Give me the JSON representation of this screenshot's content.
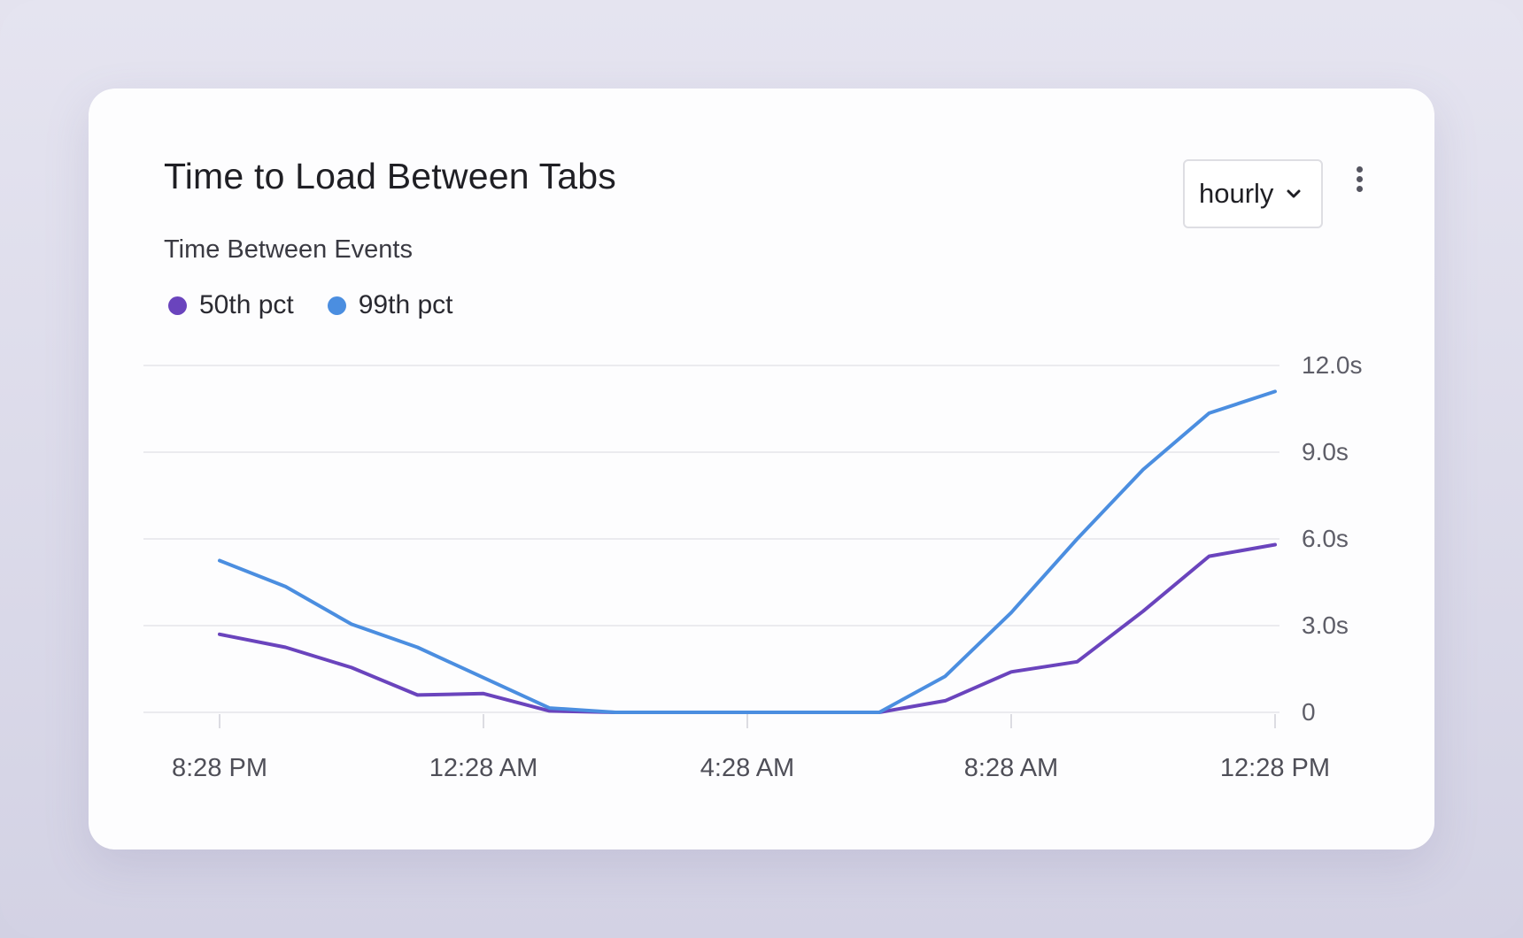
{
  "card": {
    "title": "Time to Load Between Tabs",
    "subtitle": "Time Between Events",
    "interval_select": {
      "value": "hourly"
    },
    "menu_icon": "vertical-dots-icon"
  },
  "legend": [
    {
      "name": "50th pct",
      "color": "#6a44bd"
    },
    {
      "name": "99th pct",
      "color": "#4b8ee0"
    }
  ],
  "chart_data": {
    "type": "line",
    "title": "Time to Load Between Tabs",
    "subtitle": "Time Between Events",
    "x_tick_labels": [
      "8:28 PM",
      "12:28 AM",
      "4:28 AM",
      "8:28 AM",
      "12:28 PM"
    ],
    "x": [
      "8:28 PM",
      "9:28 PM",
      "10:28 PM",
      "11:28 PM",
      "12:28 AM",
      "1:28 AM",
      "2:28 AM",
      "3:28 AM",
      "4:28 AM",
      "5:28 AM",
      "6:28 AM",
      "7:28 AM",
      "8:28 AM",
      "9:28 AM",
      "10:28 AM",
      "11:28 AM",
      "12:28 PM"
    ],
    "y_tick_labels": [
      "0",
      "3.0s",
      "6.0s",
      "9.0s",
      "12.0s"
    ],
    "y_ticks": [
      0,
      3,
      6,
      9,
      12
    ],
    "ylim": [
      0,
      12
    ],
    "y_axis_position": "right",
    "grid": true,
    "legend_position": "top-left",
    "series": [
      {
        "name": "50th pct",
        "color": "#6a44bd",
        "values": [
          2.7,
          2.25,
          1.55,
          0.6,
          0.65,
          0.05,
          0.0,
          0.0,
          0.0,
          0.0,
          0.0,
          0.4,
          1.4,
          1.75,
          3.5,
          5.4,
          5.8
        ]
      },
      {
        "name": "99th pct",
        "color": "#4b8ee0",
        "values": [
          5.25,
          4.35,
          3.05,
          2.25,
          1.2,
          0.15,
          0.0,
          0.0,
          0.0,
          0.0,
          0.0,
          1.25,
          3.45,
          6.0,
          8.4,
          10.35,
          11.1
        ]
      }
    ]
  }
}
